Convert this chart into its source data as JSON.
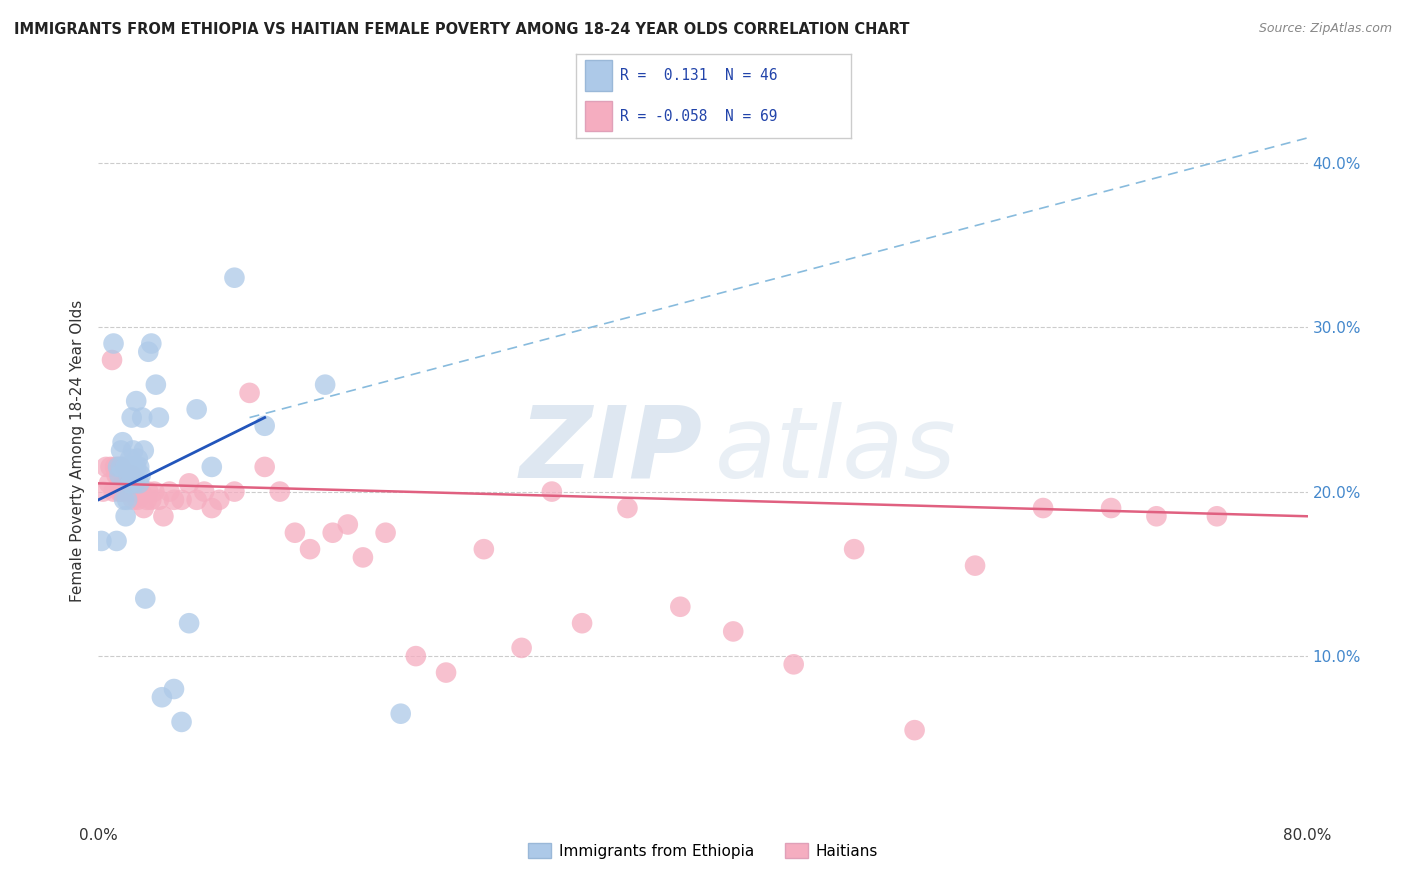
{
  "title": "IMMIGRANTS FROM ETHIOPIA VS HAITIAN FEMALE POVERTY AMONG 18-24 YEAR OLDS CORRELATION CHART",
  "source": "Source: ZipAtlas.com",
  "ylabel": "Female Poverty Among 18-24 Year Olds",
  "xlim": [
    0.0,
    0.8
  ],
  "ylim": [
    0.0,
    0.45
  ],
  "yticks_right": [
    0.1,
    0.2,
    0.3,
    0.4
  ],
  "ytick_right_labels": [
    "10.0%",
    "20.0%",
    "30.0%",
    "40.0%"
  ],
  "R_ethiopia": 0.131,
  "N_ethiopia": 46,
  "R_haitian": -0.058,
  "N_haitian": 69,
  "ethiopia_color": "#adc9e8",
  "haitian_color": "#f5adc0",
  "ethiopia_line_color": "#2255bb",
  "haitian_line_color": "#e06080",
  "background_color": "#ffffff",
  "ethiopia_x": [
    0.002,
    0.01,
    0.012,
    0.013,
    0.014,
    0.015,
    0.015,
    0.016,
    0.017,
    0.018,
    0.018,
    0.019,
    0.019,
    0.02,
    0.02,
    0.021,
    0.021,
    0.021,
    0.022,
    0.022,
    0.023,
    0.023,
    0.024,
    0.025,
    0.025,
    0.026,
    0.027,
    0.027,
    0.028,
    0.029,
    0.03,
    0.031,
    0.033,
    0.035,
    0.038,
    0.04,
    0.042,
    0.05,
    0.055,
    0.06,
    0.065,
    0.075,
    0.09,
    0.11,
    0.15,
    0.2
  ],
  "ethiopia_y": [
    0.17,
    0.29,
    0.17,
    0.215,
    0.21,
    0.225,
    0.215,
    0.23,
    0.195,
    0.185,
    0.215,
    0.215,
    0.195,
    0.215,
    0.21,
    0.205,
    0.215,
    0.22,
    0.21,
    0.245,
    0.225,
    0.215,
    0.205,
    0.255,
    0.215,
    0.22,
    0.205,
    0.215,
    0.21,
    0.245,
    0.225,
    0.135,
    0.285,
    0.29,
    0.265,
    0.245,
    0.075,
    0.08,
    0.06,
    0.12,
    0.25,
    0.215,
    0.33,
    0.24,
    0.265,
    0.065
  ],
  "haitian_x": [
    0.003,
    0.005,
    0.007,
    0.008,
    0.009,
    0.01,
    0.011,
    0.012,
    0.013,
    0.014,
    0.014,
    0.015,
    0.015,
    0.016,
    0.017,
    0.018,
    0.019,
    0.02,
    0.021,
    0.022,
    0.022,
    0.023,
    0.024,
    0.025,
    0.026,
    0.027,
    0.028,
    0.03,
    0.032,
    0.033,
    0.035,
    0.037,
    0.04,
    0.043,
    0.047,
    0.05,
    0.055,
    0.06,
    0.065,
    0.07,
    0.075,
    0.08,
    0.09,
    0.1,
    0.11,
    0.12,
    0.13,
    0.14,
    0.155,
    0.165,
    0.175,
    0.19,
    0.21,
    0.23,
    0.255,
    0.28,
    0.3,
    0.32,
    0.35,
    0.385,
    0.42,
    0.46,
    0.5,
    0.54,
    0.58,
    0.625,
    0.67,
    0.7,
    0.74
  ],
  "haitian_y": [
    0.2,
    0.215,
    0.205,
    0.215,
    0.28,
    0.2,
    0.215,
    0.21,
    0.215,
    0.2,
    0.205,
    0.2,
    0.215,
    0.2,
    0.205,
    0.205,
    0.2,
    0.205,
    0.2,
    0.21,
    0.2,
    0.195,
    0.2,
    0.2,
    0.195,
    0.2,
    0.2,
    0.19,
    0.195,
    0.2,
    0.195,
    0.2,
    0.195,
    0.185,
    0.2,
    0.195,
    0.195,
    0.205,
    0.195,
    0.2,
    0.19,
    0.195,
    0.2,
    0.26,
    0.215,
    0.2,
    0.175,
    0.165,
    0.175,
    0.18,
    0.16,
    0.175,
    0.1,
    0.09,
    0.165,
    0.105,
    0.2,
    0.12,
    0.19,
    0.13,
    0.115,
    0.095,
    0.165,
    0.055,
    0.155,
    0.19,
    0.19,
    0.185,
    0.185
  ],
  "eth_line_x0": 0.0,
  "eth_line_x1": 0.11,
  "eth_line_y0": 0.195,
  "eth_line_y1": 0.245,
  "hai_line_x0": 0.0,
  "hai_line_x1": 0.8,
  "hai_line_y0": 0.205,
  "hai_line_y1": 0.185,
  "dash_line_x0": 0.1,
  "dash_line_x1": 0.8,
  "dash_line_y0": 0.245,
  "dash_line_y1": 0.415
}
